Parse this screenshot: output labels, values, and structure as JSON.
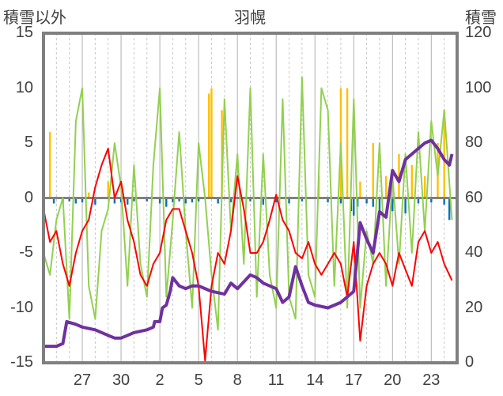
{
  "chart_data": {
    "type": "line",
    "title": "羽幌",
    "left_axis_label": "積雪以外",
    "right_axis_label": "積雪",
    "left_ylim": [
      -15,
      15
    ],
    "left_ticks": [
      "15",
      "10",
      "5",
      "0",
      "-5",
      "-10",
      "-15"
    ],
    "right_ylim": [
      0,
      120
    ],
    "right_ticks": [
      "120",
      "100",
      "80",
      "60",
      "40",
      "20",
      "0"
    ],
    "x_ticks": [
      {
        "label": "27",
        "day": 3
      },
      {
        "label": "30",
        "day": 6
      },
      {
        "label": "2",
        "day": 9
      },
      {
        "label": "5",
        "day": 12
      },
      {
        "label": "8",
        "day": 15
      },
      {
        "label": "11",
        "day": 18
      },
      {
        "label": "14",
        "day": 21
      },
      {
        "label": "17",
        "day": 24
      },
      {
        "label": "20",
        "day": 27
      },
      {
        "label": "23",
        "day": 30
      }
    ],
    "x_range": [
      0,
      32
    ],
    "grid": "vertical dashed daily, solid at ticks",
    "colors": {
      "temperature": "#ff0000",
      "wind": "#92d050",
      "snow_depth": "#7030a0",
      "precip_positive": "#ffc000",
      "precip_negative": "#0070c0",
      "frame": "#808080",
      "zero_line": "#808080"
    },
    "series": [
      {
        "key": "temperature",
        "axis": "left",
        "points": [
          [
            0,
            -1
          ],
          [
            0.5,
            -4
          ],
          [
            1,
            -3
          ],
          [
            1.5,
            -6
          ],
          [
            2,
            -8
          ],
          [
            2.5,
            -5
          ],
          [
            3,
            -3
          ],
          [
            3.5,
            -2
          ],
          [
            4,
            1
          ],
          [
            4.5,
            3
          ],
          [
            5,
            4.5
          ],
          [
            5.5,
            0
          ],
          [
            6,
            1.5
          ],
          [
            6.5,
            -2
          ],
          [
            7,
            -4
          ],
          [
            7.5,
            -7
          ],
          [
            8,
            -8
          ],
          [
            8.5,
            -6
          ],
          [
            9,
            -5
          ],
          [
            9.5,
            -2
          ],
          [
            10,
            -1
          ],
          [
            10.5,
            -1
          ],
          [
            11,
            -3
          ],
          [
            11.5,
            -5
          ],
          [
            12,
            -8
          ],
          [
            12.5,
            -14.8
          ],
          [
            13,
            -8
          ],
          [
            13.5,
            -5
          ],
          [
            14,
            -6
          ],
          [
            14.5,
            -3
          ],
          [
            15,
            2
          ],
          [
            15.5,
            -1
          ],
          [
            16,
            -5
          ],
          [
            16.5,
            -5
          ],
          [
            17,
            -4
          ],
          [
            17.5,
            -2
          ],
          [
            18,
            0.3
          ],
          [
            18.5,
            -2
          ],
          [
            19,
            -3
          ],
          [
            19.5,
            -5
          ],
          [
            20,
            -5.5
          ],
          [
            20.5,
            -4
          ],
          [
            21,
            -6
          ],
          [
            21.5,
            -7
          ],
          [
            22,
            -6
          ],
          [
            22.5,
            -5
          ],
          [
            23,
            -6
          ],
          [
            23.5,
            -9
          ],
          [
            24,
            -4
          ],
          [
            24.5,
            -13
          ],
          [
            25,
            -8
          ],
          [
            25.5,
            -6
          ],
          [
            26,
            -5
          ],
          [
            26.5,
            -6
          ],
          [
            27,
            -8
          ],
          [
            27.5,
            -5
          ],
          [
            28,
            -6.5
          ],
          [
            28.5,
            -8
          ],
          [
            29,
            -4
          ],
          [
            29.5,
            -3
          ],
          [
            30,
            -5
          ],
          [
            30.5,
            -4
          ],
          [
            31,
            -6
          ],
          [
            31.6,
            -7.5
          ]
        ]
      },
      {
        "key": "wind",
        "axis": "left",
        "points": [
          [
            0,
            -5
          ],
          [
            0.5,
            -7
          ],
          [
            1,
            -2
          ],
          [
            1.5,
            0
          ],
          [
            2,
            -11
          ],
          [
            2.5,
            7
          ],
          [
            3,
            10
          ],
          [
            3.5,
            -8
          ],
          [
            4,
            -11
          ],
          [
            4.5,
            -3
          ],
          [
            5,
            -1
          ],
          [
            5.5,
            5
          ],
          [
            6,
            1
          ],
          [
            6.5,
            -8
          ],
          [
            7,
            3
          ],
          [
            7.5,
            -6
          ],
          [
            8,
            -9
          ],
          [
            8.5,
            3
          ],
          [
            9,
            10
          ],
          [
            9.5,
            -9
          ],
          [
            10,
            -2
          ],
          [
            10.5,
            6
          ],
          [
            11,
            -3
          ],
          [
            11.5,
            -10
          ],
          [
            12,
            5
          ],
          [
            12.5,
            0
          ],
          [
            13,
            -7
          ],
          [
            13.5,
            -12
          ],
          [
            14,
            9
          ],
          [
            14.5,
            -3
          ],
          [
            15,
            4
          ],
          [
            15.5,
            -6
          ],
          [
            16,
            10
          ],
          [
            16.5,
            -9
          ],
          [
            17,
            4
          ],
          [
            17.5,
            -7
          ],
          [
            18,
            -10
          ],
          [
            18.5,
            9
          ],
          [
            19,
            -9
          ],
          [
            19.5,
            -11
          ],
          [
            20,
            11
          ],
          [
            20.5,
            -7
          ],
          [
            21,
            -9
          ],
          [
            21.5,
            10
          ],
          [
            22,
            8
          ],
          [
            22.5,
            -8
          ],
          [
            23,
            5
          ],
          [
            23.5,
            -10
          ],
          [
            24,
            9
          ],
          [
            24.5,
            -10
          ],
          [
            25,
            -3
          ],
          [
            25.5,
            -6
          ],
          [
            26,
            5
          ],
          [
            26.5,
            -8
          ],
          [
            27,
            2
          ],
          [
            27.5,
            -6
          ],
          [
            28,
            4
          ],
          [
            28.5,
            -5
          ],
          [
            29,
            6
          ],
          [
            29.5,
            -3
          ],
          [
            30,
            7
          ],
          [
            30.5,
            2
          ],
          [
            31,
            8
          ],
          [
            31.6,
            -2
          ]
        ]
      },
      {
        "key": "snow_depth",
        "axis": "right",
        "points": [
          [
            0,
            6
          ],
          [
            1,
            6
          ],
          [
            1.5,
            7
          ],
          [
            1.8,
            15
          ],
          [
            2.5,
            14
          ],
          [
            3,
            13
          ],
          [
            4,
            12
          ],
          [
            5,
            10
          ],
          [
            5.5,
            9
          ],
          [
            6,
            9
          ],
          [
            6.5,
            10
          ],
          [
            7,
            11
          ],
          [
            8,
            12
          ],
          [
            8.5,
            13
          ],
          [
            8.6,
            15
          ],
          [
            8.9,
            15
          ],
          [
            9,
            15
          ],
          [
            9.2,
            20
          ],
          [
            9.5,
            21
          ],
          [
            9.8,
            26
          ],
          [
            10,
            31
          ],
          [
            10.5,
            28
          ],
          [
            11,
            27
          ],
          [
            11.5,
            28
          ],
          [
            12,
            28
          ],
          [
            13,
            26
          ],
          [
            14,
            25
          ],
          [
            14.5,
            29
          ],
          [
            15,
            27
          ],
          [
            16,
            32
          ],
          [
            16.5,
            31
          ],
          [
            17,
            29
          ],
          [
            17.5,
            28
          ],
          [
            18,
            27
          ],
          [
            18.5,
            22
          ],
          [
            19,
            24
          ],
          [
            19.5,
            35
          ],
          [
            20,
            28
          ],
          [
            20.5,
            22
          ],
          [
            21,
            21
          ],
          [
            22,
            20
          ],
          [
            23,
            22
          ],
          [
            23.5,
            24
          ],
          [
            24,
            26
          ],
          [
            24.5,
            51
          ],
          [
            25,
            45
          ],
          [
            25.5,
            40
          ],
          [
            26,
            55
          ],
          [
            26.5,
            53
          ],
          [
            27,
            70
          ],
          [
            27.5,
            66
          ],
          [
            28,
            74
          ],
          [
            28.5,
            76
          ],
          [
            29,
            78
          ],
          [
            29.5,
            80
          ],
          [
            30,
            81
          ],
          [
            30.5,
            78
          ],
          [
            31,
            74
          ],
          [
            31.4,
            72
          ],
          [
            31.6,
            76
          ]
        ],
        "gaps": [
          [
            8.7,
            8.9
          ],
          [
            18.2,
            18.4
          ],
          [
            23.2,
            23.4
          ]
        ]
      },
      {
        "key": "precip",
        "axis": "left",
        "bars": [
          [
            0.5,
            6
          ],
          [
            0.8,
            -0.5
          ],
          [
            1.5,
            -0.4
          ],
          [
            2,
            -0.3
          ],
          [
            2.5,
            -0.5
          ],
          [
            3,
            -0.4
          ],
          [
            3.5,
            0.5
          ],
          [
            4,
            -0.6
          ],
          [
            5,
            1.5
          ],
          [
            5.5,
            -0.5
          ],
          [
            6,
            -0.4
          ],
          [
            6.5,
            -0.6
          ],
          [
            7,
            -0.3
          ],
          [
            8,
            -0.3
          ],
          [
            9,
            -0.5
          ],
          [
            9.5,
            -0.8
          ],
          [
            10,
            -0.4
          ],
          [
            10.5,
            -0.3
          ],
          [
            11,
            -0.5
          ],
          [
            11.5,
            -0.4
          ],
          [
            12,
            -0.3
          ],
          [
            12.8,
            9.5
          ],
          [
            13,
            10
          ],
          [
            13.5,
            -0.5
          ],
          [
            13.8,
            8
          ],
          [
            14.5,
            -0.4
          ],
          [
            16,
            -0.3
          ],
          [
            17,
            -0.6
          ],
          [
            18,
            -0.4
          ],
          [
            19,
            -0.5
          ],
          [
            20,
            -0.3
          ],
          [
            21.3,
            2
          ],
          [
            22,
            -0.4
          ],
          [
            23,
            -0.5
          ],
          [
            23.8,
            -1.2
          ],
          [
            24,
            -1.6
          ],
          [
            24.3,
            -0.8
          ],
          [
            25,
            -0.5
          ],
          [
            25.5,
            -0.8
          ],
          [
            26,
            -1.5
          ],
          [
            27,
            -1.2
          ],
          [
            28,
            -1.4
          ],
          [
            29,
            -0.5
          ],
          [
            30,
            -0.4
          ],
          [
            31,
            -0.6
          ],
          [
            31.4,
            -2
          ],
          [
            23,
            10
          ],
          [
            23.5,
            10
          ],
          [
            24.5,
            1.5
          ],
          [
            25.5,
            5
          ],
          [
            26.5,
            2
          ],
          [
            27.5,
            4
          ],
          [
            28.5,
            3
          ],
          [
            29.5,
            2
          ],
          [
            30.5,
            5
          ],
          [
            31,
            8
          ]
        ]
      }
    ]
  }
}
